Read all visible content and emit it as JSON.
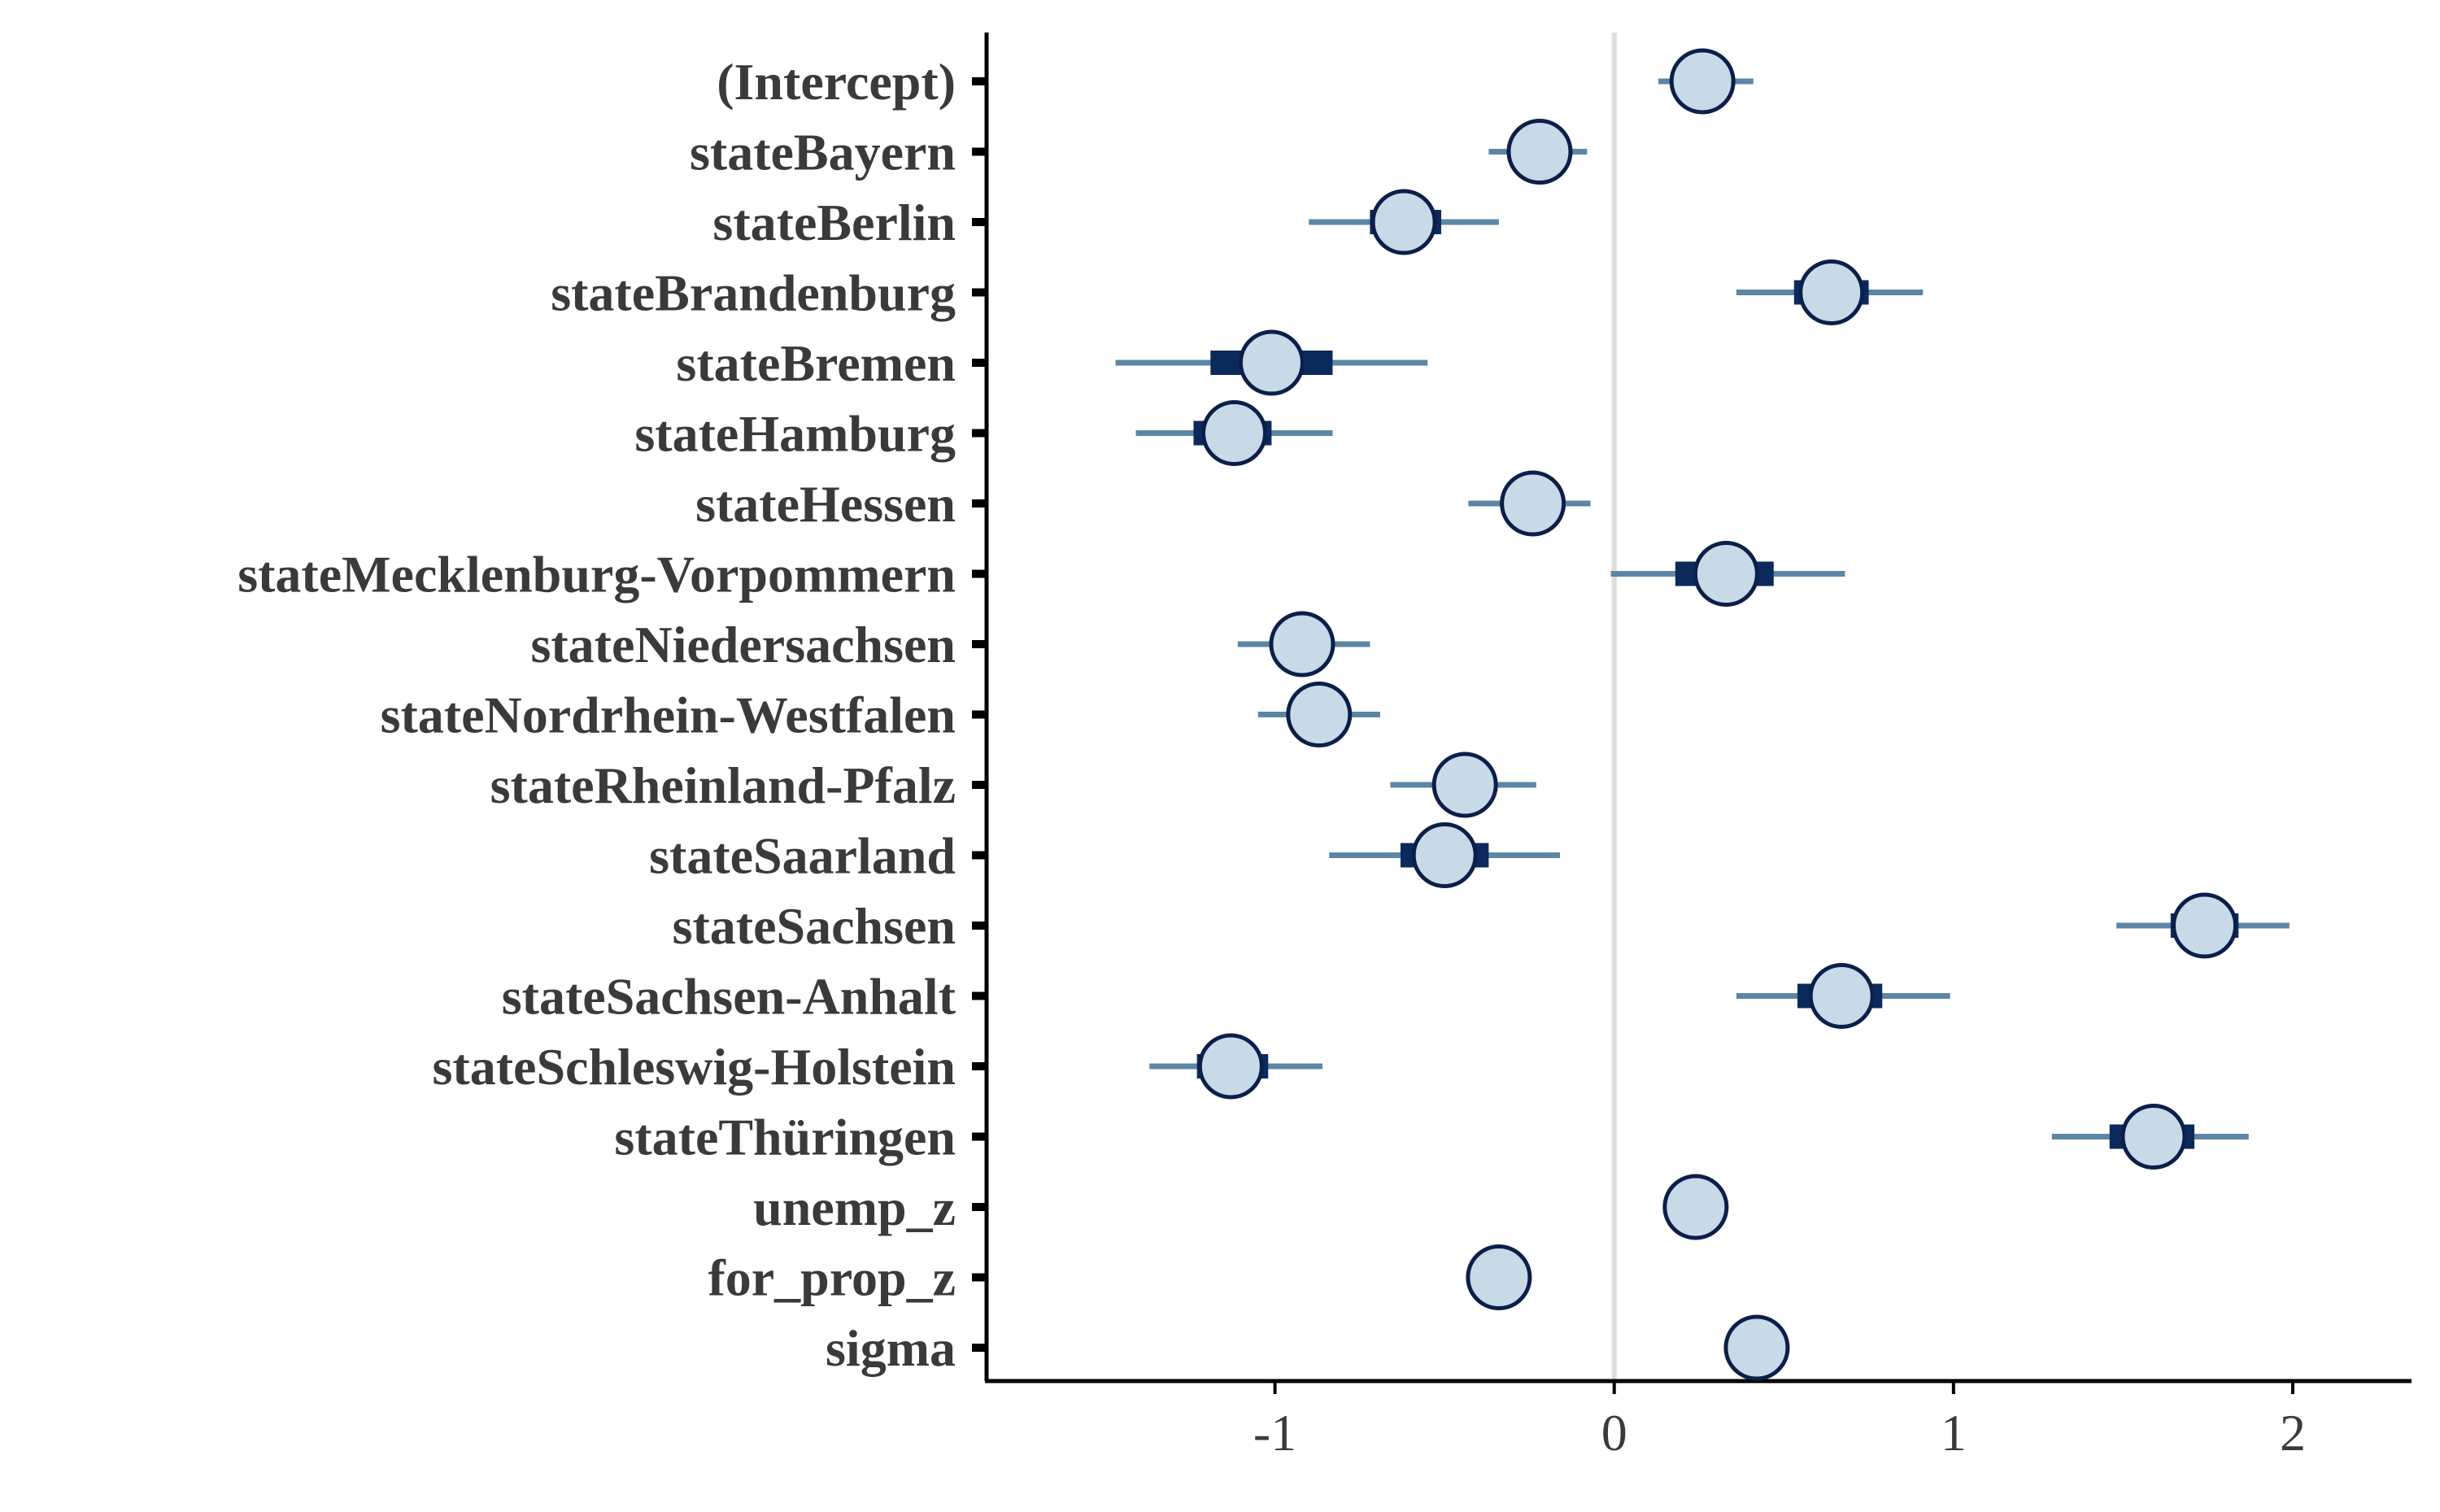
{
  "chart_data": {
    "type": "interval",
    "title": "",
    "xlabel": "",
    "ylabel": "",
    "xlim": [
      -1.85,
      2.35
    ],
    "x_ticks": [
      -1,
      0,
      1,
      2
    ],
    "x_tick_labels": [
      "-1",
      "0",
      "1",
      "2"
    ],
    "reference_line_x": 0,
    "grid": false,
    "legend": "none",
    "colors": {
      "outer_interval": "#5b87a5",
      "inner_interval": "#0b2a5b",
      "point_fill": "#c8d9e8",
      "point_stroke": "#0b1f4a",
      "reference_line": "#dddddd",
      "axis": "#000000",
      "text": "#3a3a3a"
    },
    "parameters": [
      {
        "label": "(Intercept)",
        "estimate": 0.26,
        "inner": [
          0.22,
          0.3
        ],
        "outer": [
          0.13,
          0.41
        ]
      },
      {
        "label": "stateBayern",
        "estimate": -0.22,
        "inner": [
          -0.27,
          -0.17
        ],
        "outer": [
          -0.37,
          -0.08
        ]
      },
      {
        "label": "stateBerlin",
        "estimate": -0.62,
        "inner": [
          -0.72,
          -0.51
        ],
        "outer": [
          -0.9,
          -0.34
        ]
      },
      {
        "label": "stateBrandenburg",
        "estimate": 0.64,
        "inner": [
          0.53,
          0.75
        ],
        "outer": [
          0.36,
          0.91
        ]
      },
      {
        "label": "stateBremen",
        "estimate": -1.01,
        "inner": [
          -1.19,
          -0.83
        ],
        "outer": [
          -1.47,
          -0.55
        ]
      },
      {
        "label": "stateHamburg",
        "estimate": -1.12,
        "inner": [
          -1.24,
          -1.01
        ],
        "outer": [
          -1.41,
          -0.83
        ]
      },
      {
        "label": "stateHessen",
        "estimate": -0.24,
        "inner": [
          -0.29,
          -0.19
        ],
        "outer": [
          -0.43,
          -0.07
        ]
      },
      {
        "label": "stateMecklenburg-Vorpommern",
        "estimate": 0.33,
        "inner": [
          0.18,
          0.47
        ],
        "outer": [
          -0.01,
          0.68
        ]
      },
      {
        "label": "stateNiedersachsen",
        "estimate": -0.92,
        "inner": [
          -0.97,
          -0.87
        ],
        "outer": [
          -1.11,
          -0.72
        ]
      },
      {
        "label": "stateNordrhein-Westfalen",
        "estimate": -0.87,
        "inner": [
          -0.92,
          -0.82
        ],
        "outer": [
          -1.05,
          -0.69
        ]
      },
      {
        "label": "stateRheinland-Pfalz",
        "estimate": -0.44,
        "inner": [
          -0.5,
          -0.38
        ],
        "outer": [
          -0.66,
          -0.23
        ]
      },
      {
        "label": "stateSaarland",
        "estimate": -0.5,
        "inner": [
          -0.63,
          -0.37
        ],
        "outer": [
          -0.84,
          -0.16
        ]
      },
      {
        "label": "stateSachsen",
        "estimate": 1.74,
        "inner": [
          1.64,
          1.84
        ],
        "outer": [
          1.48,
          1.99
        ]
      },
      {
        "label": "stateSachsen-Anhalt",
        "estimate": 0.67,
        "inner": [
          0.54,
          0.79
        ],
        "outer": [
          0.36,
          0.99
        ]
      },
      {
        "label": "stateSchleswig-Holstein",
        "estimate": -1.13,
        "inner": [
          -1.23,
          -1.02
        ],
        "outer": [
          -1.37,
          -0.86
        ]
      },
      {
        "label": "stateThüringen",
        "estimate": 1.59,
        "inner": [
          1.46,
          1.71
        ],
        "outer": [
          1.29,
          1.87
        ]
      },
      {
        "label": "unemp_z",
        "estimate": 0.24,
        "inner": [
          0.21,
          0.27
        ],
        "outer": [
          0.17,
          0.31
        ]
      },
      {
        "label": "for_prop_z",
        "estimate": -0.34,
        "inner": [
          -0.37,
          -0.31
        ],
        "outer": [
          -0.41,
          -0.27
        ]
      },
      {
        "label": "sigma",
        "estimate": 0.42,
        "inner": [
          0.39,
          0.45
        ],
        "outer": [
          0.36,
          0.48
        ]
      }
    ]
  }
}
